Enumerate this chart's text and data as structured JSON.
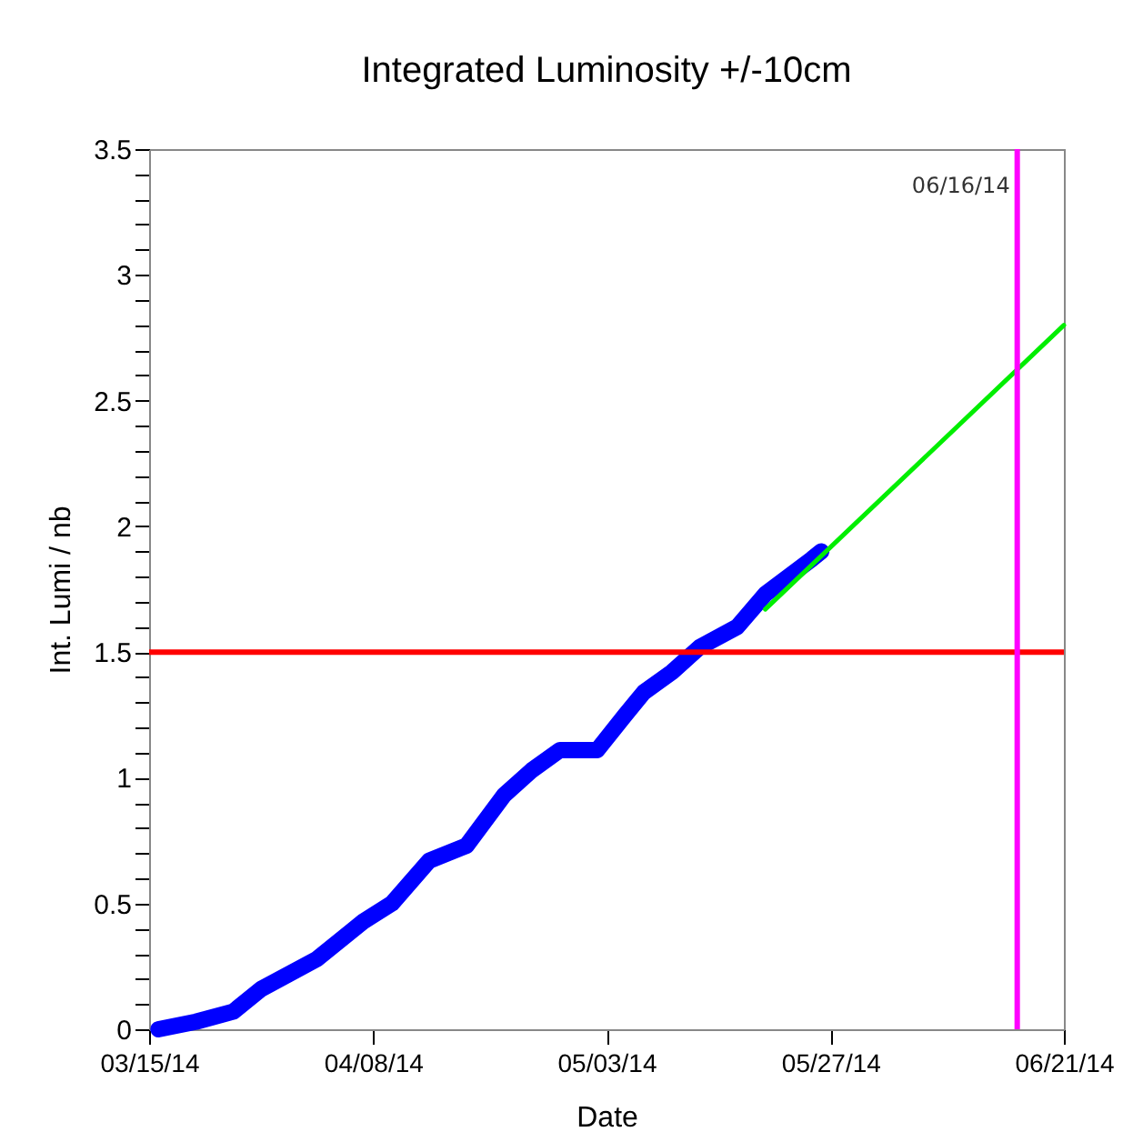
{
  "chart_data": {
    "type": "line",
    "title": "Integrated Luminosity +/-10cm",
    "xlabel": "Date",
    "ylabel": "Int. Lumi / nb",
    "series": [
      {
        "color": "#0000ff",
        "x": [
          "2014-03-16",
          "2014-03-20",
          "2014-03-24",
          "2014-03-27",
          "2014-04-02",
          "2014-04-07",
          "2014-04-10",
          "2014-04-14",
          "2014-04-18",
          "2014-04-22",
          "2014-04-25",
          "2014-04-28",
          "2014-05-02",
          "2014-05-05",
          "2014-05-07",
          "2014-05-10",
          "2014-05-13",
          "2014-05-17",
          "2014-05-20",
          "2014-05-25",
          "2014-05-26"
        ],
        "values": [
          0.0,
          0.03,
          0.07,
          0.16,
          0.28,
          0.43,
          0.5,
          0.67,
          0.73,
          0.93,
          1.03,
          1.11,
          1.11,
          1.25,
          1.34,
          1.42,
          1.52,
          1.6,
          1.73,
          1.87,
          1.9
        ]
      },
      {
        "color": "#00ee00",
        "x": [
          "2014-05-20",
          "2014-06-21"
        ],
        "values": [
          1.67,
          2.8
        ]
      }
    ],
    "xlim": [
      "2014-03-15",
      "2014-06-21"
    ],
    "xticks": [
      {
        "value": "2014-03-15",
        "label": "03/15/14"
      },
      {
        "value": "2014-04-08",
        "label": "04/08/14"
      },
      {
        "value": "2014-05-03",
        "label": "05/03/14"
      },
      {
        "value": "2014-05-27",
        "label": "05/27/14"
      },
      {
        "value": "2014-06-21",
        "label": "06/21/14"
      }
    ],
    "ylim": [
      0,
      3.5
    ],
    "yticks": [
      0,
      {
        "value": 0.1,
        "label": null
      },
      {
        "value": 0.2,
        "label": null
      },
      {
        "value": 0.3,
        "label": null
      },
      {
        "value": 0.4,
        "label": null
      },
      0.5,
      {
        "value": 0.6,
        "label": null
      },
      {
        "value": 0.7,
        "label": null
      },
      {
        "value": 0.8,
        "label": null
      },
      {
        "value": 0.9,
        "label": null
      },
      1,
      {
        "value": 1.1,
        "label": null
      },
      {
        "value": 1.2,
        "label": null
      },
      {
        "value": 1.3,
        "label": null
      },
      {
        "value": 1.4,
        "label": null
      },
      1.5,
      {
        "value": 1.6,
        "label": null
      },
      {
        "value": 1.7,
        "label": null
      },
      {
        "value": 1.8,
        "label": null
      },
      {
        "value": 1.9,
        "label": null
      },
      2,
      {
        "value": 2.1,
        "label": null
      },
      {
        "value": 2.2,
        "label": null
      },
      {
        "value": 2.3,
        "label": null
      },
      {
        "value": 2.4,
        "label": null
      },
      2.5,
      {
        "value": 2.6,
        "label": null
      },
      {
        "value": 2.7,
        "label": null
      },
      {
        "value": 2.8,
        "label": null
      },
      {
        "value": 2.9,
        "label": null
      },
      3,
      {
        "value": 3.1,
        "label": null
      },
      {
        "value": 3.2,
        "label": null
      },
      {
        "value": 3.3,
        "label": null
      },
      {
        "value": 3.4,
        "label": null
      },
      3.5
    ],
    "ref_lines": [
      {
        "axis": "y",
        "value": 1.5,
        "color": "#ff0000"
      },
      {
        "axis": "x",
        "value": "2014-06-16",
        "label": "06/16/14",
        "color": "#ff00ff"
      }
    ],
    "grid": false,
    "marker": "none",
    "line_style": "solid"
  }
}
